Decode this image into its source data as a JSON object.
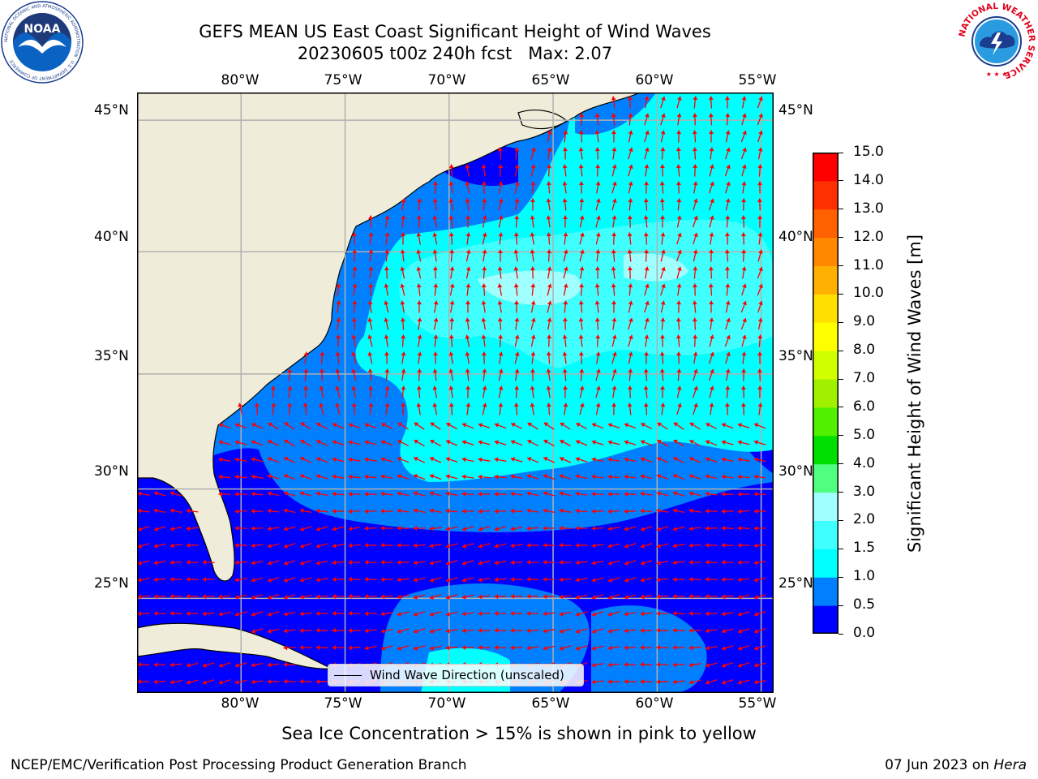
{
  "title": {
    "line1": "GEFS MEAN US East Coast Significant Height of Wind Waves",
    "line2": "20230605 t00z 240h fcst   Max: 2.07"
  },
  "map": {
    "lon_labels_top": [
      "80°W",
      "75°W",
      "70°W",
      "65°W",
      "60°W",
      "55°W"
    ],
    "lon_labels_bottom": [
      "80°W",
      "75°W",
      "70°W",
      "65°W",
      "60°W",
      "55°W"
    ],
    "lat_labels_left": [
      "45°N",
      "40°N",
      "35°N",
      "30°N",
      "25°N"
    ],
    "lat_labels_right": [
      "45°N",
      "40°N",
      "35°N",
      "30°N",
      "25°N"
    ],
    "lon_range": [
      -85,
      -54.4
    ],
    "lat_range": [
      20.5,
      46
    ],
    "land_color": "#efedda",
    "vector_color": "#ff0000",
    "gridline_color": "#b0b0b0",
    "legend_label": "Wind Wave Direction (unscaled)"
  },
  "colorbar": {
    "label": "Significant Height of Wind Waves [m]",
    "ticks": [
      "0.0",
      "0.5",
      "1.0",
      "1.5",
      "2.0",
      "3.0",
      "4.0",
      "5.0",
      "6.0",
      "7.0",
      "8.0",
      "9.0",
      "10.0",
      "11.0",
      "12.0",
      "13.0",
      "14.0",
      "15.0"
    ],
    "colors": [
      "#0000ff",
      "#0080ff",
      "#00ffff",
      "#40ffff",
      "#a0ffff",
      "#50ff80",
      "#00e000",
      "#50f000",
      "#a0f000",
      "#d0ff00",
      "#ffff00",
      "#ffe000",
      "#ffb000",
      "#ff8800",
      "#ff6000",
      "#ff3000",
      "#ff0000"
    ]
  },
  "logos": {
    "noaa": {
      "text": "NOAA",
      "ring_text": "NATIONAL OCEANIC AND ATMOSPHERIC ADMINISTRATION · U.S. DEPARTMENT OF COMMERCE"
    },
    "nws": {
      "ring_text": "NATIONAL WEATHER SERVICE"
    }
  },
  "footnote": "Sea Ice Concentration > 15% is shown in pink to yellow",
  "credit": "NCEP/EMC/Verification Post Processing Product Generation Branch",
  "date": {
    "prefix": "07 Jun 2023 on ",
    "machine": "Hera"
  }
}
